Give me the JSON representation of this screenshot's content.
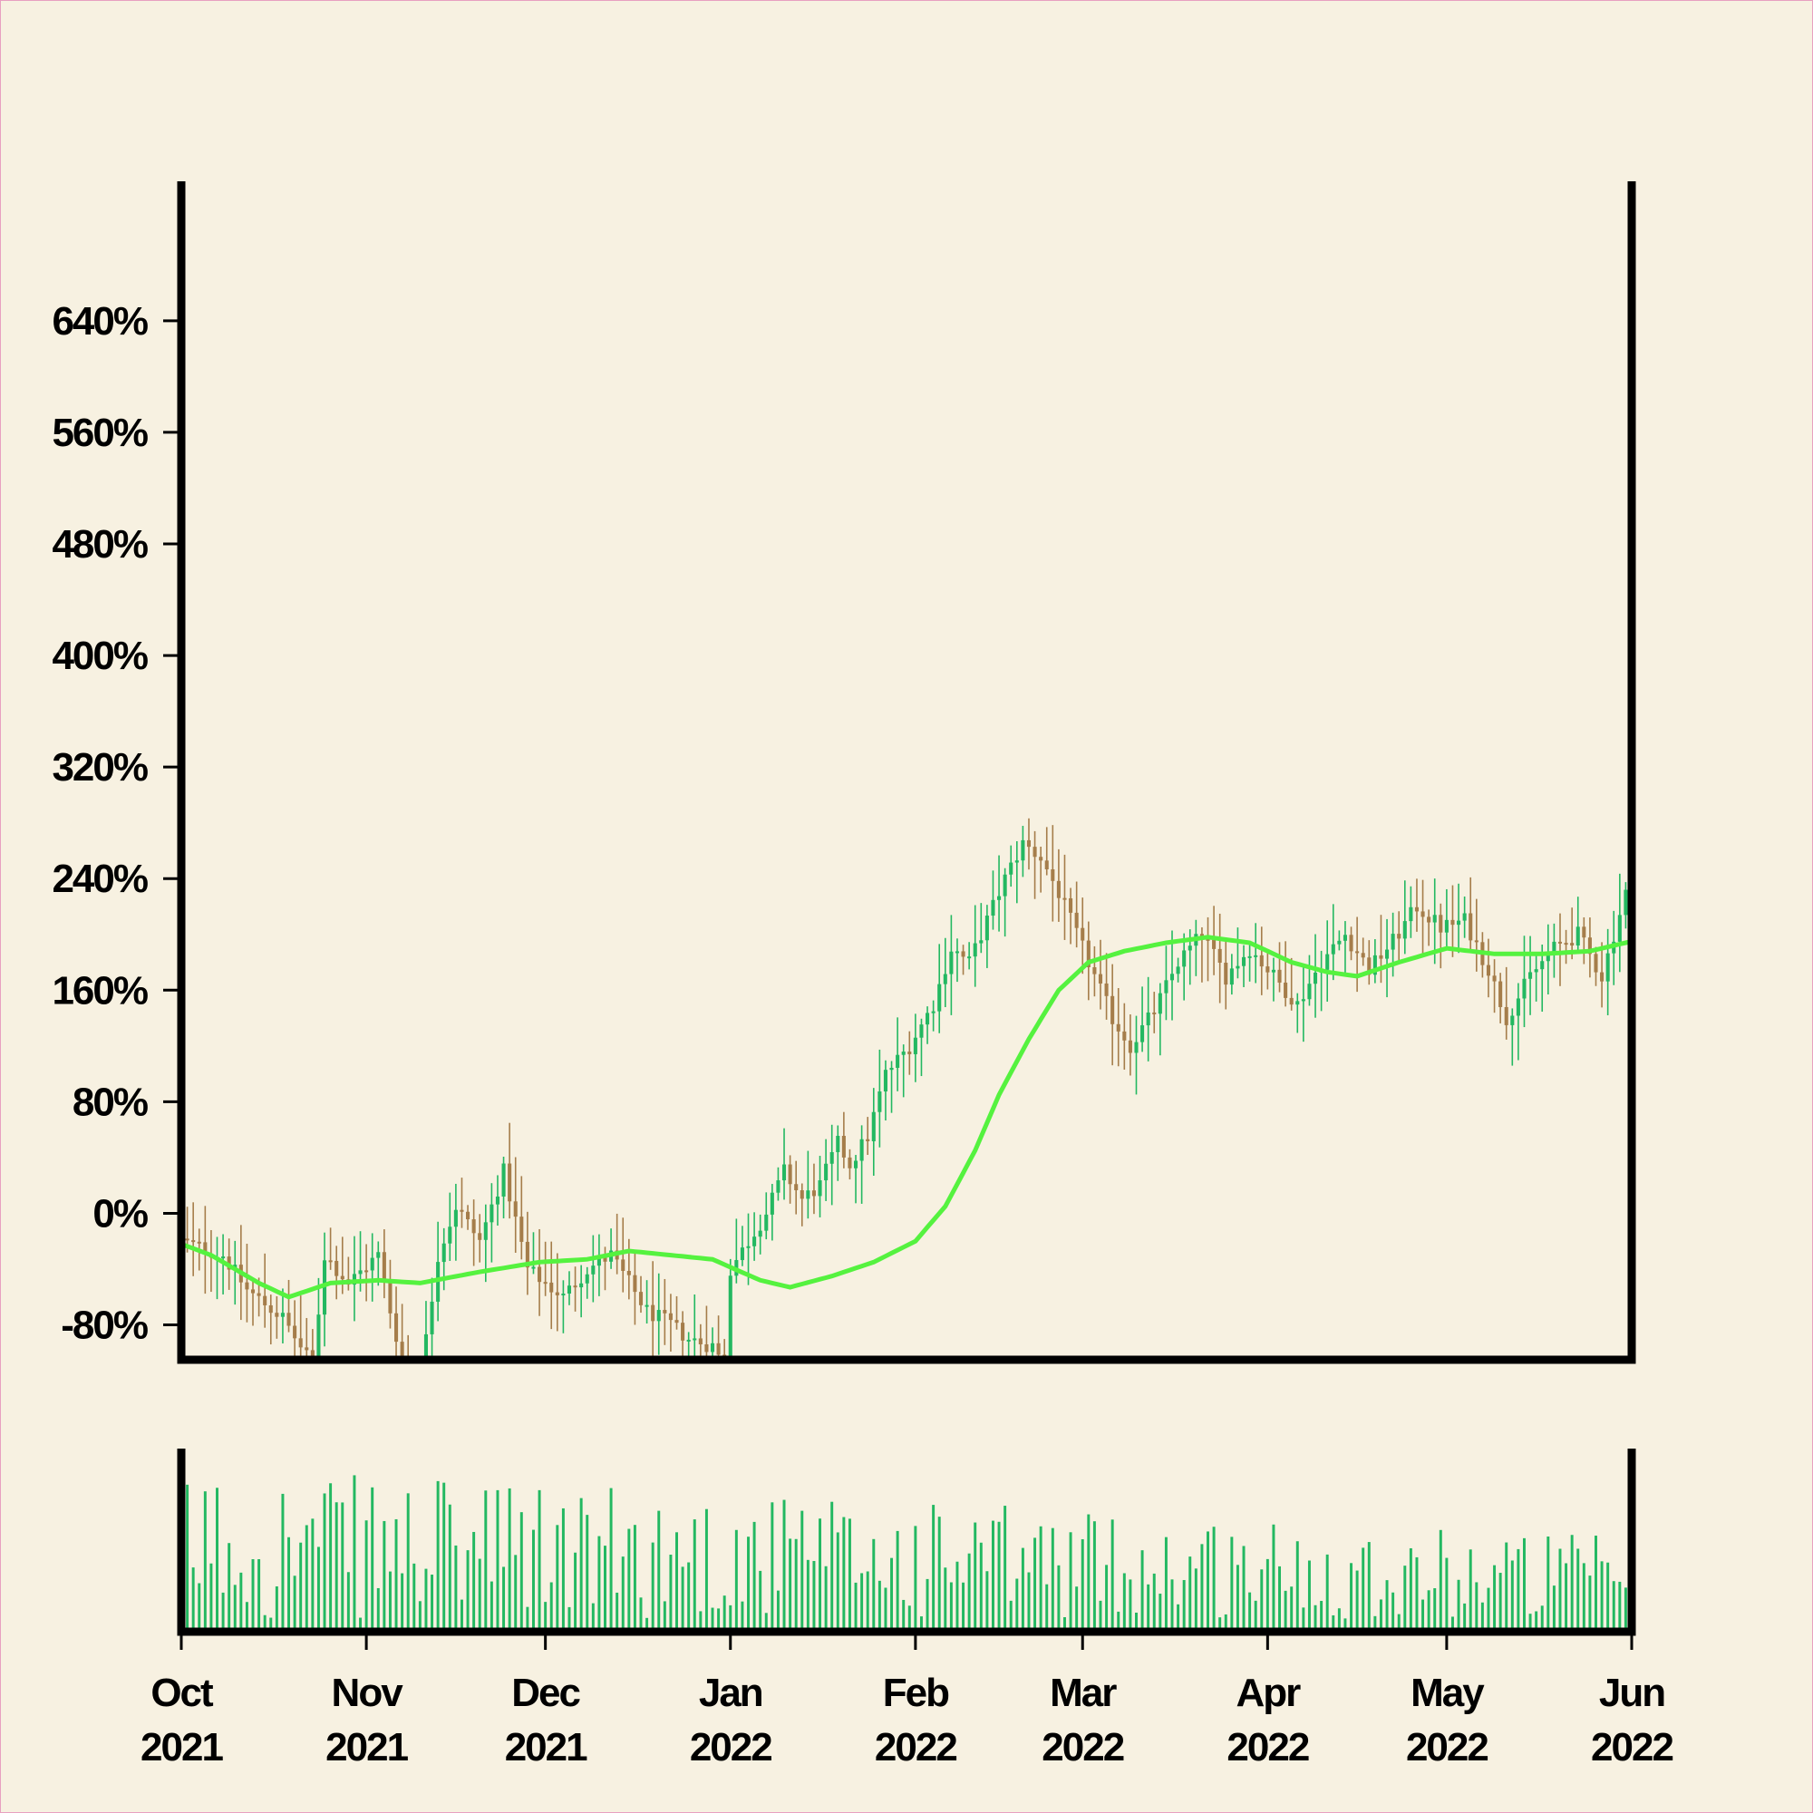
{
  "chart_data": {
    "type": "candlestick",
    "x_range": [
      "2021-10-01",
      "2022-06-01"
    ],
    "ylim": [
      -105,
      740
    ],
    "y_ticks": [
      -80,
      0,
      80,
      160,
      240,
      320,
      400,
      480,
      560,
      640
    ],
    "y_tick_labels": [
      "-80%",
      "0%",
      "80%",
      "160%",
      "240%",
      "320%",
      "400%",
      "480%",
      "560%",
      "640%"
    ],
    "x_ticks": [
      "2021-10-01",
      "2021-11-01",
      "2021-12-01",
      "2022-01-01",
      "2022-02-01",
      "2022-03-01",
      "2022-04-01",
      "2022-05-01",
      "2022-06-01"
    ],
    "x_tick_labels": [
      {
        "month": "Oct",
        "year": "2021"
      },
      {
        "month": "Nov",
        "year": "2021"
      },
      {
        "month": "Dec",
        "year": "2021"
      },
      {
        "month": "Jan",
        "year": "2022"
      },
      {
        "month": "Feb",
        "year": "2022"
      },
      {
        "month": "Mar",
        "year": "2022"
      },
      {
        "month": "Apr",
        "year": "2022"
      },
      {
        "month": "May",
        "year": "2022"
      },
      {
        "month": "Jun",
        "year": "2022"
      }
    ],
    "price_keypoints": [
      [
        "2021-10-01",
        -20
      ],
      [
        "2021-10-08",
        -30
      ],
      [
        "2021-10-12",
        -55
      ],
      [
        "2021-10-18",
        -75
      ],
      [
        "2021-10-23",
        -110
      ],
      [
        "2021-10-25",
        -30
      ],
      [
        "2021-10-29",
        -50
      ],
      [
        "2021-11-03",
        -30
      ],
      [
        "2021-11-05",
        -70
      ],
      [
        "2021-11-07",
        -105
      ],
      [
        "2021-11-10",
        -120
      ],
      [
        "2021-11-13",
        -30
      ],
      [
        "2021-11-16",
        5
      ],
      [
        "2021-11-20",
        -20
      ],
      [
        "2021-11-24",
        30
      ],
      [
        "2021-11-28",
        -40
      ],
      [
        "2021-12-01",
        -50
      ],
      [
        "2021-12-04",
        -60
      ],
      [
        "2021-12-08",
        -40
      ],
      [
        "2021-12-12",
        -30
      ],
      [
        "2021-12-15",
        -50
      ],
      [
        "2021-12-18",
        -70
      ],
      [
        "2021-12-22",
        -80
      ],
      [
        "2021-12-25",
        -90
      ],
      [
        "2021-12-29",
        -95
      ],
      [
        "2021-12-31",
        -110
      ],
      [
        "2022-01-01",
        -40
      ],
      [
        "2022-01-04",
        -20
      ],
      [
        "2022-01-07",
        0
      ],
      [
        "2022-01-10",
        30
      ],
      [
        "2022-01-13",
        10
      ],
      [
        "2022-01-16",
        20
      ],
      [
        "2022-01-19",
        50
      ],
      [
        "2022-01-21",
        35
      ],
      [
        "2022-01-24",
        55
      ],
      [
        "2022-01-27",
        100
      ],
      [
        "2022-01-31",
        120
      ],
      [
        "2022-02-04",
        150
      ],
      [
        "2022-02-07",
        190
      ],
      [
        "2022-02-10",
        180
      ],
      [
        "2022-02-13",
        210
      ],
      [
        "2022-02-16",
        240
      ],
      [
        "2022-02-19",
        265
      ],
      [
        "2022-02-22",
        255
      ],
      [
        "2022-02-25",
        230
      ],
      [
        "2022-02-28",
        200
      ],
      [
        "2022-03-03",
        170
      ],
      [
        "2022-03-06",
        140
      ],
      [
        "2022-03-09",
        120
      ],
      [
        "2022-03-13",
        145
      ],
      [
        "2022-03-17",
        180
      ],
      [
        "2022-03-21",
        200
      ],
      [
        "2022-03-25",
        170
      ],
      [
        "2022-03-29",
        190
      ],
      [
        "2022-04-02",
        170
      ],
      [
        "2022-04-06",
        150
      ],
      [
        "2022-04-10",
        180
      ],
      [
        "2022-04-14",
        200
      ],
      [
        "2022-04-18",
        175
      ],
      [
        "2022-04-22",
        195
      ],
      [
        "2022-04-26",
        220
      ],
      [
        "2022-04-30",
        205
      ],
      [
        "2022-05-04",
        210
      ],
      [
        "2022-05-08",
        175
      ],
      [
        "2022-05-11",
        140
      ],
      [
        "2022-05-15",
        170
      ],
      [
        "2022-05-19",
        190
      ],
      [
        "2022-05-23",
        200
      ],
      [
        "2022-05-27",
        170
      ],
      [
        "2022-05-30",
        215
      ],
      [
        "2022-06-01",
        245
      ]
    ],
    "moving_average": [
      [
        "2021-10-01",
        -22
      ],
      [
        "2021-10-06",
        -30
      ],
      [
        "2021-10-14",
        -50
      ],
      [
        "2021-10-19",
        -60
      ],
      [
        "2021-10-26",
        -50
      ],
      [
        "2021-11-03",
        -48
      ],
      [
        "2021-11-10",
        -50
      ],
      [
        "2021-11-20",
        -42
      ],
      [
        "2021-11-30",
        -35
      ],
      [
        "2021-12-08",
        -33
      ],
      [
        "2021-12-15",
        -27
      ],
      [
        "2021-12-22",
        -30
      ],
      [
        "2021-12-29",
        -33
      ],
      [
        "2022-01-06",
        -48
      ],
      [
        "2022-01-11",
        -53
      ],
      [
        "2022-01-18",
        -45
      ],
      [
        "2022-01-25",
        -35
      ],
      [
        "2022-02-01",
        -20
      ],
      [
        "2022-02-06",
        5
      ],
      [
        "2022-02-11",
        45
      ],
      [
        "2022-02-15",
        85
      ],
      [
        "2022-02-20",
        125
      ],
      [
        "2022-02-25",
        160
      ],
      [
        "2022-03-02",
        180
      ],
      [
        "2022-03-08",
        188
      ],
      [
        "2022-03-15",
        194
      ],
      [
        "2022-03-22",
        198
      ],
      [
        "2022-03-29",
        194
      ],
      [
        "2022-04-05",
        180
      ],
      [
        "2022-04-11",
        173
      ],
      [
        "2022-04-16",
        170
      ],
      [
        "2022-04-23",
        180
      ],
      [
        "2022-05-01",
        190
      ],
      [
        "2022-05-09",
        186
      ],
      [
        "2022-05-17",
        186
      ],
      [
        "2022-05-25",
        188
      ],
      [
        "2022-06-01",
        195
      ]
    ],
    "colors": {
      "background": "#f7f1e1",
      "up": "#23b861",
      "down": "#a57d4a",
      "moving_average": "#55f23f",
      "volume": "#23b861",
      "axes": "#000000"
    },
    "grid": false,
    "panels": [
      "price",
      "volume"
    ]
  }
}
